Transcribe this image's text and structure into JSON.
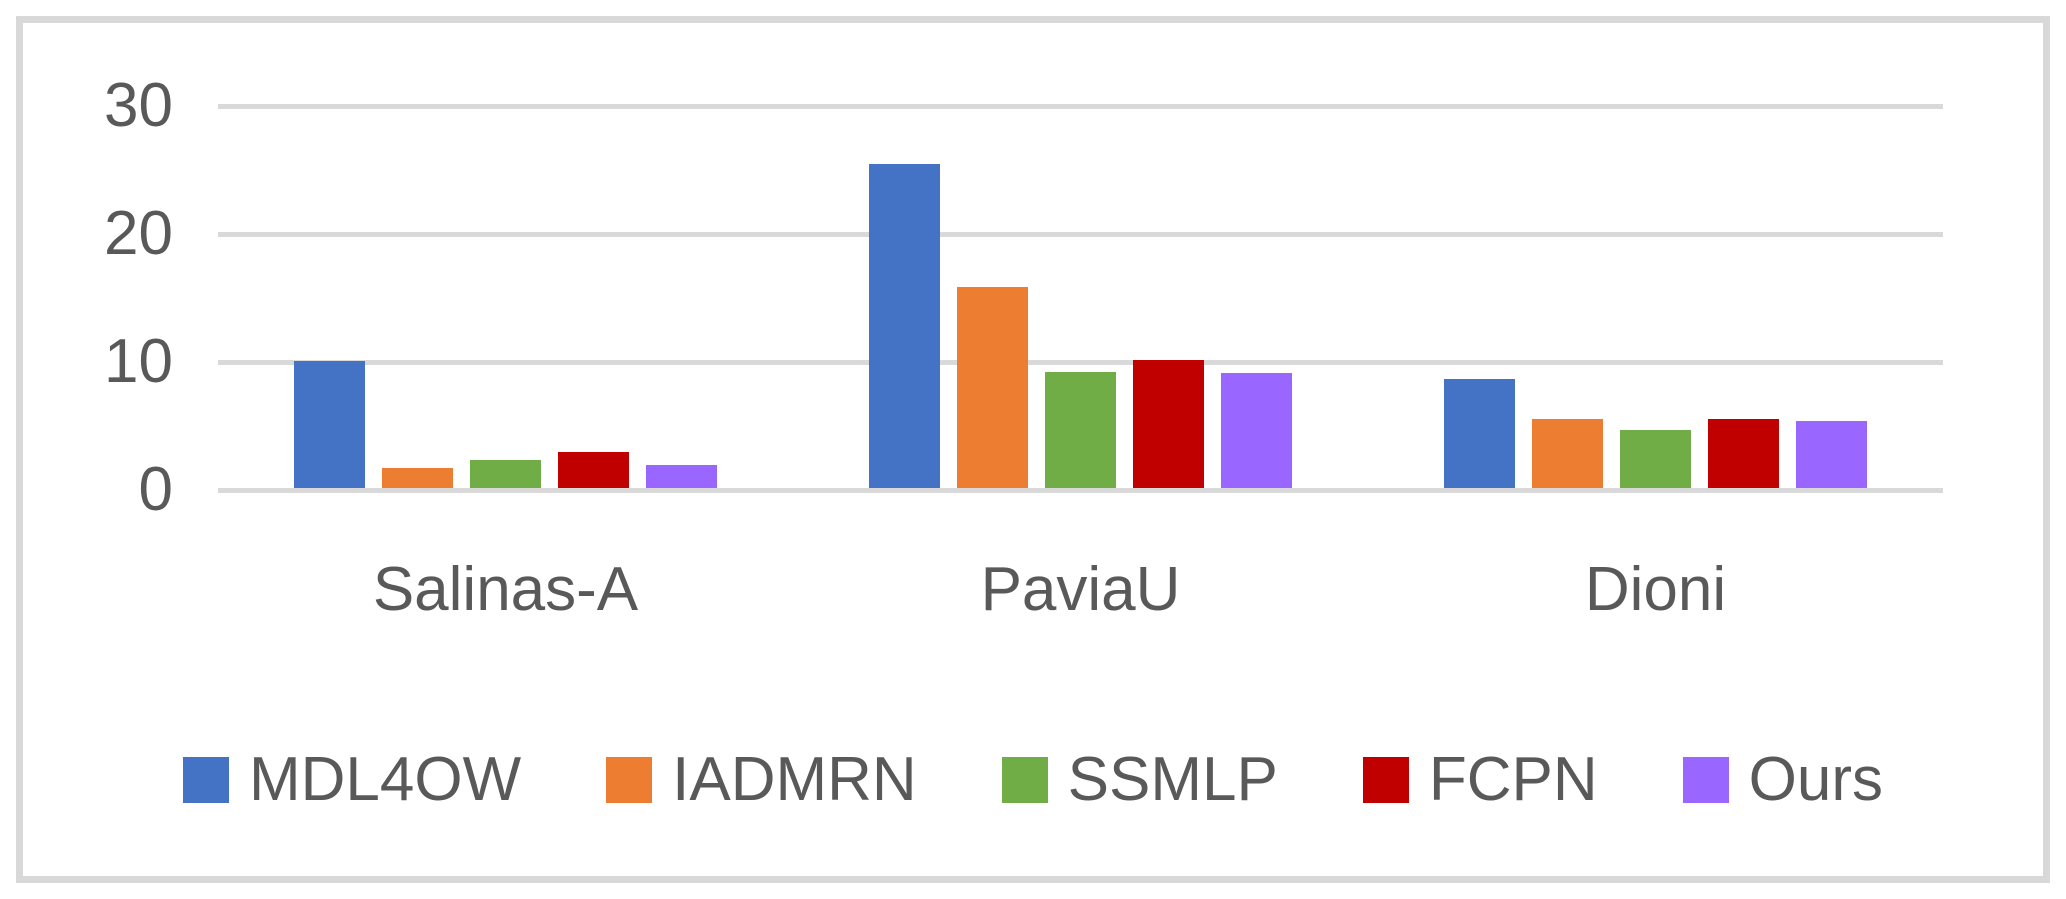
{
  "chart_data": {
    "type": "bar",
    "title": "",
    "xlabel": "",
    "ylabel": "",
    "categories": [
      "Salinas-A",
      "PaviaU",
      "Dioni"
    ],
    "series": [
      {
        "name": "MDL4OW",
        "color": "#4472C4",
        "values": [
          9.9,
          25.3,
          8.5
        ]
      },
      {
        "name": "IADMRN",
        "color": "#ED7D31",
        "values": [
          1.6,
          15.7,
          5.4
        ]
      },
      {
        "name": "SSMLP",
        "color": "#70AD47",
        "values": [
          2.2,
          9.1,
          4.5
        ]
      },
      {
        "name": "FCPN",
        "color": "#C00000",
        "values": [
          2.8,
          10.0,
          5.4
        ]
      },
      {
        "name": "Ours",
        "color": "#9966FF",
        "values": [
          1.8,
          9.0,
          5.2
        ]
      }
    ],
    "ylim": [
      0,
      30
    ],
    "yticks": [
      0,
      10,
      20,
      30
    ],
    "grid": true,
    "gridline_color": "#D9D9D9",
    "frame_color": "#D8D8D8",
    "text_color": "#595959",
    "legend_position": "bottom"
  }
}
